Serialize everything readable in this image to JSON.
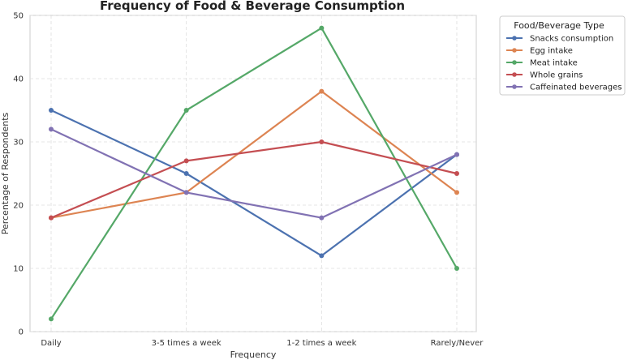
{
  "chart_data": {
    "type": "line",
    "title": "Frequency of Food & Beverage Consumption",
    "xlabel": "Frequency",
    "ylabel": "Percentage of Respondents",
    "categories": [
      "Daily",
      "3-5 times a week",
      "1-2 times a week",
      "Rarely/Never"
    ],
    "ylim": [
      0,
      50
    ],
    "yticks": [
      0,
      10,
      20,
      30,
      40,
      50
    ],
    "ytick_labels": [
      "0",
      "10",
      "20",
      "30",
      "40",
      "50"
    ],
    "grid": true,
    "legend": {
      "title": "Food/Beverage Type",
      "placement": "outside-right"
    },
    "series": [
      {
        "name": "Snacks consumption",
        "color": "#4c72b0",
        "values": [
          35,
          25,
          12,
          28
        ]
      },
      {
        "name": "Egg intake",
        "color": "#dd8452",
        "values": [
          18,
          22,
          38,
          22
        ]
      },
      {
        "name": "Meat intake",
        "color": "#55a868",
        "values": [
          2,
          35,
          48,
          10
        ]
      },
      {
        "name": "Whole grains",
        "color": "#c44e52",
        "values": [
          18,
          27,
          30,
          25
        ]
      },
      {
        "name": "Caffeinated beverages",
        "color": "#8172b3",
        "values": [
          32,
          22,
          18,
          28
        ]
      }
    ]
  }
}
